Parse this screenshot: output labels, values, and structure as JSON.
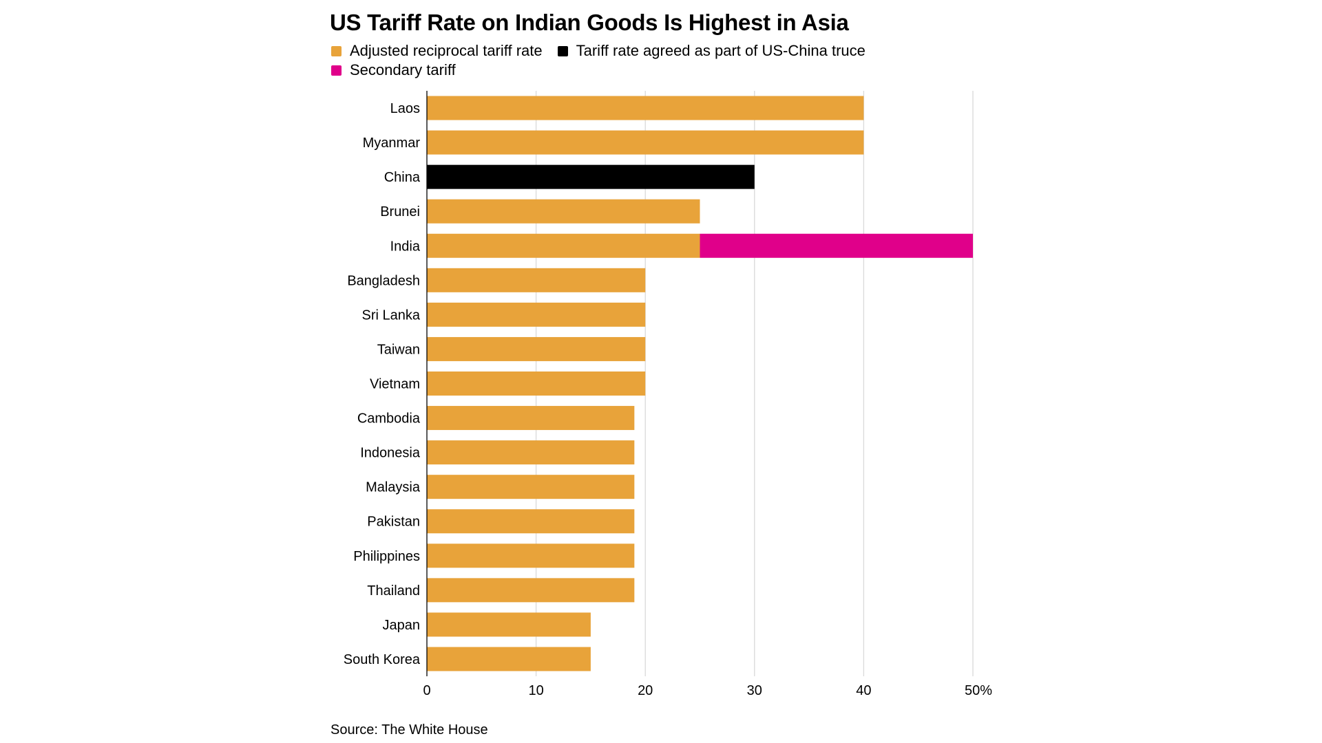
{
  "chart_data": {
    "type": "bar",
    "orientation": "horizontal",
    "stacked": true,
    "title": "US Tariff Rate on Indian Goods Is Highest in Asia",
    "legend": [
      {
        "name": "Adjusted reciprocal tariff rate",
        "color": "#E8A33A"
      },
      {
        "name": "Tariff rate agreed as part of US-China truce",
        "color": "#000000"
      },
      {
        "name": "Secondary tariff",
        "color": "#E0008A"
      }
    ],
    "categories": [
      "Laos",
      "Myanmar",
      "China",
      "Brunei",
      "India",
      "Bangladesh",
      "Sri Lanka",
      "Taiwan",
      "Vietnam",
      "Cambodia",
      "Indonesia",
      "Malaysia",
      "Pakistan",
      "Philippines",
      "Thailand",
      "Japan",
      "South Korea"
    ],
    "series": [
      {
        "name": "Adjusted reciprocal tariff rate",
        "values": [
          40,
          40,
          0,
          25,
          25,
          20,
          20,
          20,
          20,
          19,
          19,
          19,
          19,
          19,
          19,
          15,
          15
        ]
      },
      {
        "name": "Tariff rate agreed as part of US-China truce",
        "values": [
          0,
          0,
          30,
          0,
          0,
          0,
          0,
          0,
          0,
          0,
          0,
          0,
          0,
          0,
          0,
          0,
          0
        ]
      },
      {
        "name": "Secondary tariff",
        "values": [
          0,
          0,
          0,
          0,
          25,
          0,
          0,
          0,
          0,
          0,
          0,
          0,
          0,
          0,
          0,
          0,
          0
        ]
      }
    ],
    "xlim": [
      0,
      50
    ],
    "xticks": [
      "0",
      "10",
      "20",
      "30",
      "40",
      "50%"
    ],
    "xlabel": "",
    "ylabel": "",
    "grid": true
  },
  "source": "Source: The White House"
}
